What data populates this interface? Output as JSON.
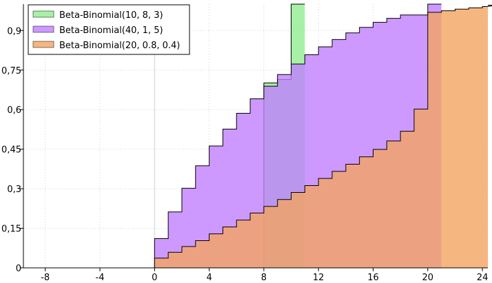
{
  "chart_data": {
    "type": "area",
    "title": "",
    "xlabel": "",
    "ylabel": "",
    "xlim": [
      -9.6,
      24.4
    ],
    "ylim": [
      0,
      1
    ],
    "grid": true,
    "legend_position": "top-left",
    "x_ticks": [
      {
        "value": -8,
        "label": "-8"
      },
      {
        "value": -4,
        "label": "-4"
      },
      {
        "value": 0,
        "label": "0"
      },
      {
        "value": 4,
        "label": "4"
      },
      {
        "value": 8,
        "label": "8"
      },
      {
        "value": 12,
        "label": "12"
      },
      {
        "value": 16,
        "label": "16"
      },
      {
        "value": 20,
        "label": "20"
      },
      {
        "value": 24,
        "label": "24"
      }
    ],
    "y_ticks": [
      {
        "value": 0,
        "label": "0"
      },
      {
        "value": 0.15,
        "label": "0,15"
      },
      {
        "value": 0.3,
        "label": "0,3"
      },
      {
        "value": 0.45,
        "label": "0,45"
      },
      {
        "value": 0.6,
        "label": "0,6"
      },
      {
        "value": 0.75,
        "label": "0,75"
      },
      {
        "value": 0.9,
        "label": "0,9"
      }
    ],
    "series": [
      {
        "name": "Beta-Binomial(10, 8, 3)",
        "color": "#90ee90",
        "x_start": 0,
        "values": [
          0.0,
          0.0,
          0.0,
          0.0,
          0.0,
          0.0,
          0.0,
          0.0,
          0.701,
          0.714,
          1.0
        ]
      },
      {
        "name": "Beta-Binomial(40, 1, 5)",
        "color": "#c080ff",
        "x_start": 0,
        "values": [
          0.111,
          0.212,
          0.302,
          0.387,
          0.462,
          0.526,
          0.586,
          0.641,
          0.689,
          0.733,
          0.773,
          0.808,
          0.838,
          0.866,
          0.891,
          0.912,
          0.931,
          0.946,
          0.959,
          0.959,
          1.0
        ]
      },
      {
        "name": "Beta-Binomial(20, 0.8, 0.4)",
        "color": "#f4a460",
        "x_start": 0,
        "values": [
          0.037,
          0.059,
          0.081,
          0.103,
          0.129,
          0.155,
          0.181,
          0.208,
          0.233,
          0.259,
          0.286,
          0.312,
          0.339,
          0.366,
          0.393,
          0.421,
          0.449,
          0.481,
          0.518,
          0.602,
          0.969,
          0.975,
          0.981,
          0.986,
          0.991,
          0.996
        ]
      }
    ]
  }
}
